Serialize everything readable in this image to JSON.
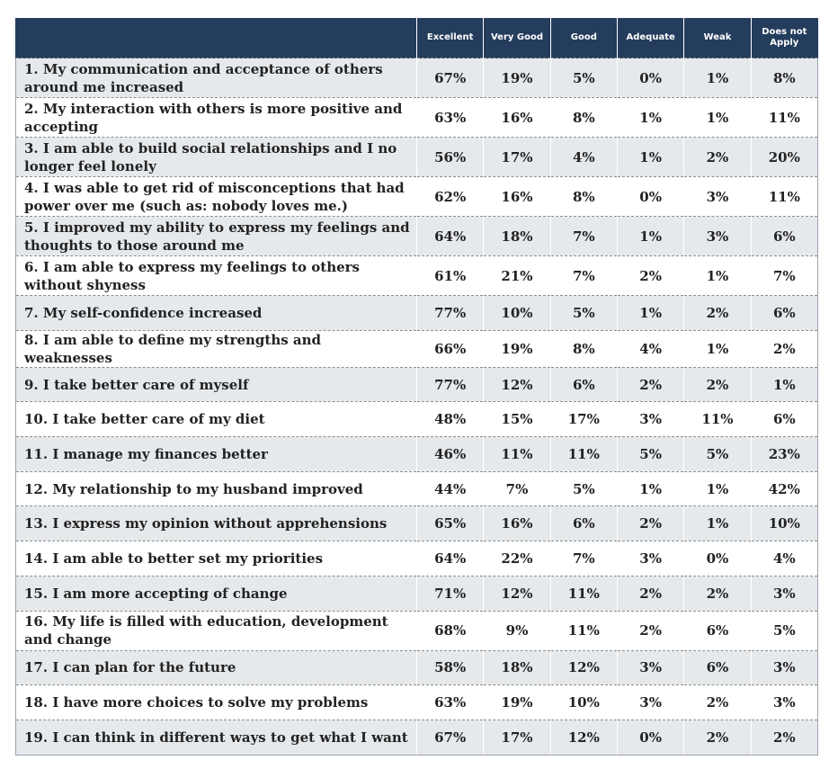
{
  "chart_data": {
    "type": "table",
    "columns": [
      "",
      "Excellent",
      "Very Good",
      "Good",
      "Adequate",
      "Weak",
      "Does not Apply"
    ],
    "rows": [
      {
        "statement": "1. My communication and acceptance of others around me increased",
        "values": [
          "67%",
          "19%",
          "5%",
          "0%",
          "1%",
          "8%"
        ]
      },
      {
        "statement": "2. My interaction with others is more positive and accepting",
        "values": [
          "63%",
          "16%",
          "8%",
          "1%",
          "1%",
          "11%"
        ]
      },
      {
        "statement": "3. I am able to build social relationships and I no longer feel lonely",
        "values": [
          "56%",
          "17%",
          "4%",
          "1%",
          "2%",
          "20%"
        ]
      },
      {
        "statement": "4. I was able to get rid of misconceptions that had power over me (such as: nobody loves me.)",
        "values": [
          "62%",
          "16%",
          "8%",
          "0%",
          "3%",
          "11%"
        ]
      },
      {
        "statement": "5. I improved my ability to express my feelings and thoughts to those around me",
        "values": [
          "64%",
          "18%",
          "7%",
          "1%",
          "3%",
          "6%"
        ]
      },
      {
        "statement": "6. I am able to express my feelings to others without shyness",
        "values": [
          "61%",
          "21%",
          "7%",
          "2%",
          "1%",
          "7%"
        ]
      },
      {
        "statement": "7. My self-confidence increased",
        "values": [
          "77%",
          "10%",
          "5%",
          "1%",
          "2%",
          "6%"
        ]
      },
      {
        "statement": "8. I am able to define my strengths and weaknesses",
        "values": [
          "66%",
          "19%",
          "8%",
          "4%",
          "1%",
          "2%"
        ]
      },
      {
        "statement": "9. I take better care of myself",
        "values": [
          "77%",
          "12%",
          "6%",
          "2%",
          "2%",
          "1%"
        ]
      },
      {
        "statement": "10. I take better care of my diet",
        "values": [
          "48%",
          "15%",
          "17%",
          "3%",
          "11%",
          "6%"
        ]
      },
      {
        "statement": "11. I manage my finances better",
        "values": [
          "46%",
          "11%",
          "11%",
          "5%",
          "5%",
          "23%"
        ]
      },
      {
        "statement": "12. My relationship to my husband improved",
        "values": [
          "44%",
          "7%",
          "5%",
          "1%",
          "1%",
          "42%"
        ]
      },
      {
        "statement": "13. I express my opinion without apprehensions",
        "values": [
          "65%",
          "16%",
          "6%",
          "2%",
          "1%",
          "10%"
        ]
      },
      {
        "statement": "14. I am able to better set my priorities",
        "values": [
          "64%",
          "22%",
          "7%",
          "3%",
          "0%",
          "4%"
        ]
      },
      {
        "statement": "15. I am more accepting of change",
        "values": [
          "71%",
          "12%",
          "11%",
          "2%",
          "2%",
          "3%"
        ]
      },
      {
        "statement": "16. My life is filled with education, development and change",
        "values": [
          "68%",
          "9%",
          "11%",
          "2%",
          "6%",
          "5%"
        ]
      },
      {
        "statement": "17. I can plan for the future",
        "values": [
          "58%",
          "18%",
          "12%",
          "3%",
          "6%",
          "3%"
        ]
      },
      {
        "statement": "18. I have more choices to solve my problems",
        "values": [
          "63%",
          "19%",
          "10%",
          "3%",
          "2%",
          "3%"
        ]
      },
      {
        "statement": "19. I can think in different ways to get what I want",
        "values": [
          "67%",
          "17%",
          "12%",
          "0%",
          "2%",
          "2%"
        ]
      }
    ]
  },
  "colors": {
    "header_bg": "#243d5c",
    "header_text": "#ffffff",
    "shaded_row": "#e6e9ec",
    "plain_row": "#ffffff"
  }
}
